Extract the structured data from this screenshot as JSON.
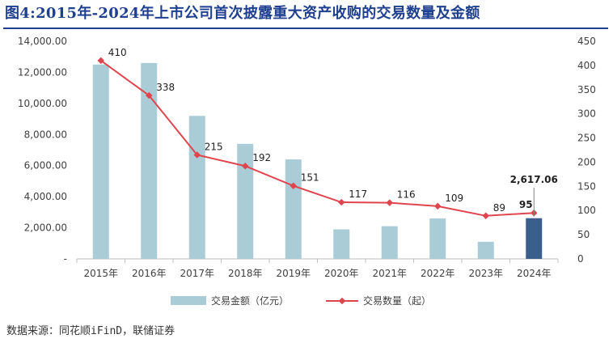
{
  "title": "图4:2015年-2024年上市公司首次披露重大资产收购的交易数量及金额",
  "source": "数据来源：同花顺iFinD，联储证券",
  "colors": {
    "title": "#1f3f8f",
    "bar": "#a9ccd6",
    "bar_highlight": "#3b5f8c",
    "line": "#e0454e",
    "axis_text": "#404040"
  },
  "chart_data": {
    "type": "bar",
    "categories": [
      "2015年",
      "2016年",
      "2017年",
      "2018年",
      "2019年",
      "2020年",
      "2021年",
      "2022年",
      "2023年",
      "2024年"
    ],
    "series": [
      {
        "name": "交易金额（亿元）",
        "type": "bar",
        "axis": "left",
        "values": [
          12500,
          12600,
          9200,
          7400,
          6400,
          1900,
          2100,
          2600,
          1100,
          2617.06
        ],
        "highlight_index": 9,
        "data_labels": {
          "9": "2,617.06"
        }
      },
      {
        "name": "交易数量（起）",
        "type": "line",
        "axis": "right",
        "values": [
          410,
          338,
          215,
          192,
          151,
          117,
          116,
          109,
          89,
          95
        ],
        "data_labels": [
          "410",
          "338",
          "215",
          "192",
          "151",
          "117",
          "116",
          "109",
          "89",
          "95"
        ]
      }
    ],
    "y_left": {
      "min": 0,
      "max": 14000,
      "step": 2000,
      "tick_labels": [
        "-",
        "2,000.00",
        "4,000.00",
        "6,000.00",
        "8,000.00",
        "10,000.00",
        "12,000.00",
        "14,000.00"
      ]
    },
    "y_right": {
      "min": 0,
      "max": 450,
      "step": 50,
      "tick_labels": [
        "0",
        "50",
        "100",
        "150",
        "200",
        "250",
        "300",
        "350",
        "400",
        "450"
      ]
    },
    "grid": false,
    "legend_position": "bottom"
  }
}
